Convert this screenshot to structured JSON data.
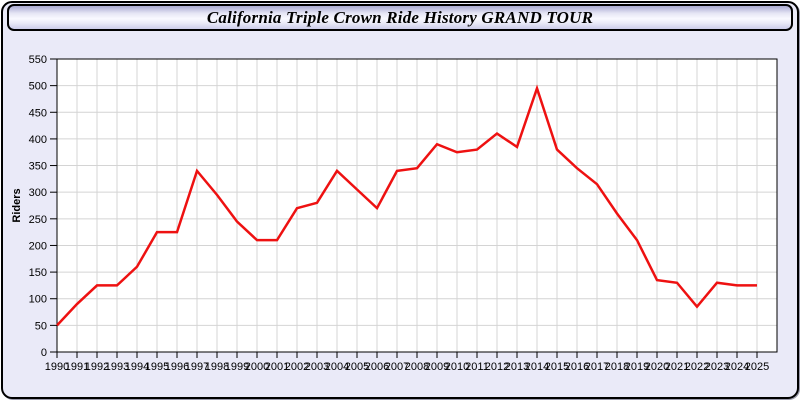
{
  "window": {
    "title": "California Triple Crown Ride History GRAND TOUR"
  },
  "colors": {
    "window_background": "#eaeaf8",
    "window_border": "#000000",
    "plot_background": "#ffffff",
    "grid": "#d4d4d4",
    "axis": "#000000",
    "line": "#ee1111",
    "text": "#000000"
  },
  "chart_data": {
    "type": "line",
    "title": "California Triple Crown Ride History GRAND TOUR",
    "xlabel": "",
    "ylabel": "Riders",
    "x": [
      1990,
      1991,
      1992,
      1993,
      1994,
      1995,
      1996,
      1997,
      1998,
      1999,
      2000,
      2001,
      2002,
      2003,
      2004,
      2005,
      2006,
      2007,
      2008,
      2009,
      2010,
      2011,
      2012,
      2013,
      2014,
      2015,
      2016,
      2017,
      2018,
      2019,
      2020,
      2021,
      2022,
      2023,
      2024,
      2025
    ],
    "series": [
      {
        "name": "Riders",
        "color": "#ee1111",
        "values": [
          50,
          90,
          125,
          125,
          160,
          225,
          225,
          340,
          295,
          245,
          210,
          210,
          270,
          280,
          340,
          305,
          270,
          340,
          345,
          390,
          375,
          380,
          410,
          385,
          495,
          380,
          345,
          315,
          260,
          210,
          135,
          130,
          85,
          130,
          125,
          125
        ]
      }
    ],
    "ylim": [
      0,
      550
    ],
    "ytick_step": 50,
    "xlim": [
      1990,
      2026
    ],
    "grid": true,
    "legend": false
  }
}
